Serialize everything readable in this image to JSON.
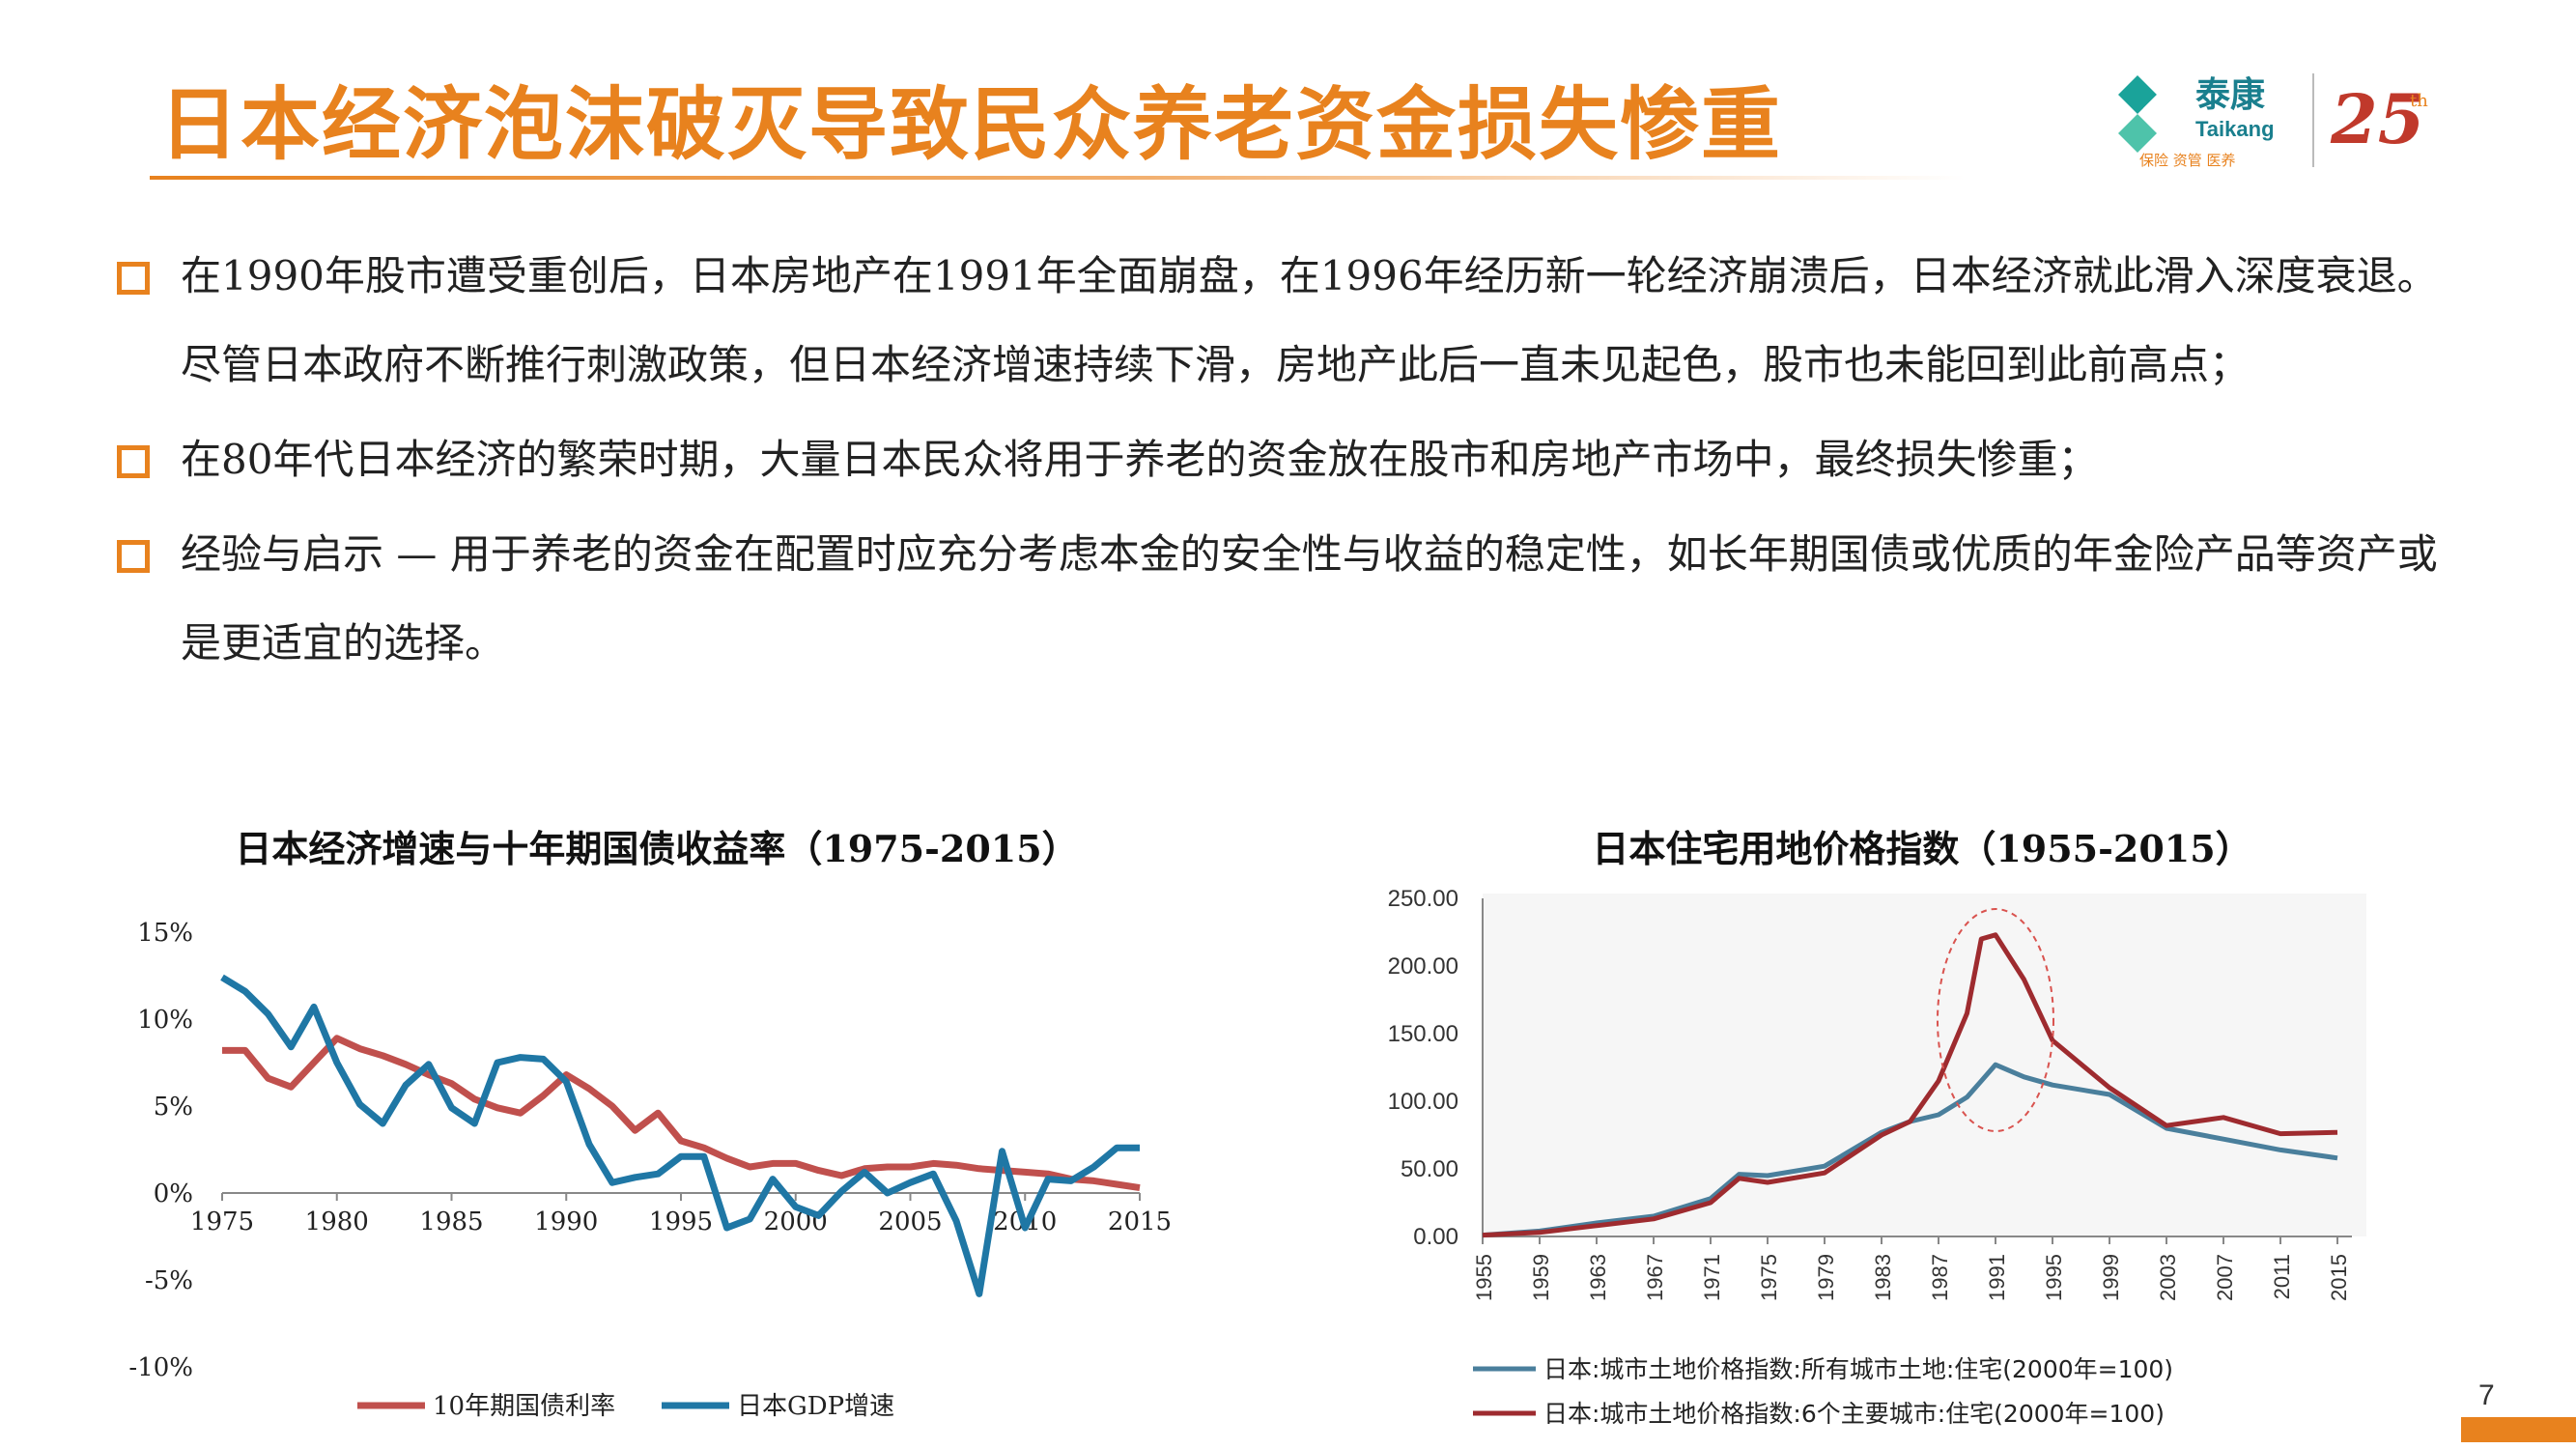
{
  "header": {
    "title": "日本经济泡沫破灭导致民众养老资金损失惨重",
    "logo_cn": "泰康",
    "logo_en": "Taikang",
    "logo_slogan": "保险 资管 医养",
    "logo_anniversary": "25",
    "logo_anniversary_sup": "th"
  },
  "bullets": [
    "在1990年股市遭受重创后，日本房地产在1991年全面崩盘，在1996年经历新一轮经济崩溃后，日本经济就此滑入深度衰退。尽管日本政府不断推行刺激政策，但日本经济增速持续下滑，房地产此后一直未见起色，股市也未能回到此前高点；",
    "在80年代日本经济的繁荣时期，大量日本民众将用于养老的资金放在股市和房地产市场中，最终损失惨重；",
    "经验与启示 — 用于养老的资金在配置时应充分考虑本金的安全性与收益的稳定性，如长年期国债或优质的年金险产品等资产或是更适宜的选择。"
  ],
  "page_number": "7",
  "colors": {
    "accent": "#e8821e",
    "bond": "#c0504d",
    "gdp": "#1f77a5",
    "land_all": "#4a7f9c",
    "land_six": "#9e2b2f"
  },
  "chart_data": [
    {
      "type": "line",
      "title": "日本经济增速与十年期国债收益率（1975-2015）",
      "x": [
        1975,
        1976,
        1977,
        1978,
        1979,
        1980,
        1981,
        1982,
        1983,
        1984,
        1985,
        1986,
        1987,
        1988,
        1989,
        1990,
        1991,
        1992,
        1993,
        1994,
        1995,
        1996,
        1997,
        1998,
        1999,
        2000,
        2001,
        2002,
        2003,
        2004,
        2005,
        2006,
        2007,
        2008,
        2009,
        2010,
        2011,
        2012,
        2013,
        2014,
        2015
      ],
      "xticks": [
        "1975",
        "1980",
        "1985",
        "1990",
        "1995",
        "2000",
        "2005",
        "2010",
        "2015"
      ],
      "yticks": [
        "15%",
        "10%",
        "5%",
        "0%",
        "-5%",
        "-10%"
      ],
      "ylim": [
        -10,
        15
      ],
      "series": [
        {
          "name": "10年期国债利率",
          "color": "#c0504d",
          "values": [
            8.2,
            8.2,
            6.6,
            6.1,
            7.5,
            8.9,
            8.3,
            7.9,
            7.4,
            6.8,
            6.3,
            5.4,
            4.9,
            4.6,
            5.6,
            6.8,
            6.0,
            5.0,
            3.6,
            4.6,
            3.0,
            2.6,
            2.0,
            1.5,
            1.7,
            1.7,
            1.3,
            1.0,
            1.4,
            1.5,
            1.5,
            1.7,
            1.6,
            1.4,
            1.3,
            1.2,
            1.1,
            0.8,
            0.7,
            0.5,
            0.3
          ]
        },
        {
          "name": "日本GDP增速",
          "color": "#1f77a5",
          "values": [
            12.4,
            11.6,
            10.3,
            8.4,
            10.7,
            7.5,
            5.1,
            4.0,
            6.2,
            7.4,
            4.9,
            4.0,
            7.5,
            7.8,
            7.7,
            6.4,
            2.8,
            0.6,
            0.9,
            1.1,
            2.1,
            2.1,
            -2.0,
            -1.5,
            0.8,
            -0.8,
            -1.3,
            0.1,
            1.2,
            0.0,
            0.6,
            1.1,
            -1.6,
            -5.8,
            2.4,
            -2.0,
            0.8,
            0.7,
            1.5,
            2.6,
            2.6
          ]
        }
      ]
    },
    {
      "type": "line",
      "title": "日本住宅用地价格指数（1955-2015）",
      "x": [
        1955,
        1959,
        1963,
        1967,
        1971,
        1973,
        1975,
        1979,
        1983,
        1985,
        1987,
        1989,
        1990,
        1991,
        1993,
        1995,
        1999,
        2003,
        2007,
        2011,
        2015
      ],
      "xticks": [
        "1955",
        "1959",
        "1963",
        "1967",
        "1971",
        "1975",
        "1979",
        "1983",
        "1987",
        "1991",
        "1995",
        "1999",
        "2003",
        "2007",
        "2011",
        "2015"
      ],
      "yticks": [
        "250.00",
        "200.00",
        "150.00",
        "100.00",
        "50.00",
        "0.00"
      ],
      "ylim": [
        0,
        250
      ],
      "series": [
        {
          "name": "日本:城市土地价格指数:所有城市土地:住宅(2000年=100)",
          "color": "#4a7f9c",
          "values": [
            1,
            4,
            10,
            15,
            28,
            46,
            45,
            52,
            77,
            85,
            90,
            103,
            115,
            127,
            118,
            112,
            105,
            80,
            72,
            64,
            58
          ]
        },
        {
          "name": "日本:城市土地价格指数:6个主要城市:住宅(2000年=100)",
          "color": "#9e2b2f",
          "values": [
            1,
            3,
            8,
            13,
            25,
            43,
            40,
            47,
            75,
            85,
            115,
            165,
            220,
            223,
            190,
            145,
            110,
            82,
            88,
            76,
            77
          ]
        }
      ]
    }
  ]
}
